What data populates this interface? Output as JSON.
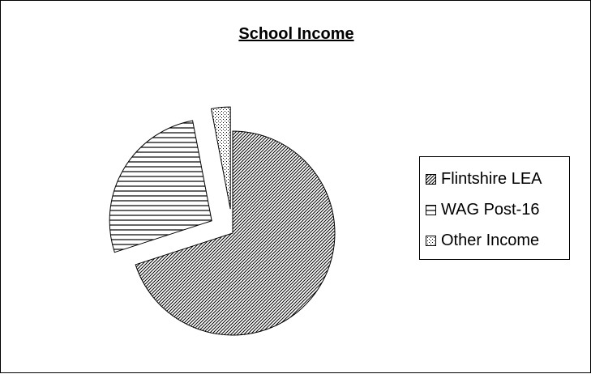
{
  "chart_data": {
    "type": "pie",
    "title": "School Income",
    "legend_position": "right",
    "exploded": true,
    "slices": [
      {
        "label": "Flintshire LEA",
        "value": 70,
        "pattern": "diagonal-hatch"
      },
      {
        "label": "WAG Post-16",
        "value": 27,
        "pattern": "horizontal-lines"
      },
      {
        "label": "Other Income",
        "value": 3,
        "pattern": "dots"
      }
    ]
  }
}
